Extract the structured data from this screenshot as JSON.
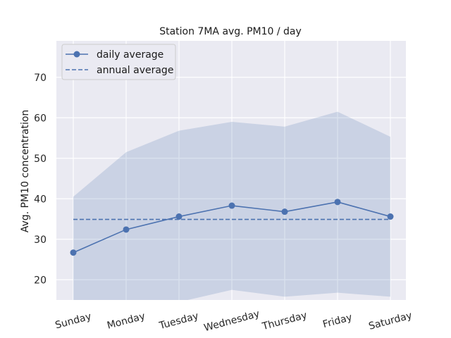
{
  "chart_data": {
    "type": "line",
    "title": "Station 7MA avg. PM10 / day",
    "xlabel": "",
    "ylabel": "Avg. PM10 concentration",
    "categories": [
      "Sunday",
      "Monday",
      "Tuesday",
      "Wednesday",
      "Thursday",
      "Friday",
      "Saturday"
    ],
    "series": [
      {
        "name": "daily average",
        "values": [
          26.7,
          32.4,
          35.6,
          38.3,
          36.8,
          39.2,
          35.6
        ],
        "color": "#4c72b0",
        "style": "solid",
        "marker": "circle"
      },
      {
        "name": "annual average",
        "values": [
          34.9,
          34.9,
          34.9,
          34.9,
          34.9,
          34.9,
          34.9
        ],
        "color": "#4c72b0",
        "style": "dashed"
      }
    ],
    "band": {
      "upper": [
        40.5,
        51.5,
        56.8,
        59.0,
        57.8,
        61.5,
        55.3
      ],
      "lower": [
        13.0,
        12.0,
        14.5,
        17.5,
        15.8,
        16.8,
        15.8
      ],
      "color": "#4c72b0"
    },
    "yticks": [
      20,
      30,
      40,
      50,
      60,
      70
    ],
    "ylim": [
      15,
      79
    ],
    "grid": true,
    "legend_position": "top-left",
    "background": "#eaeaf2"
  }
}
